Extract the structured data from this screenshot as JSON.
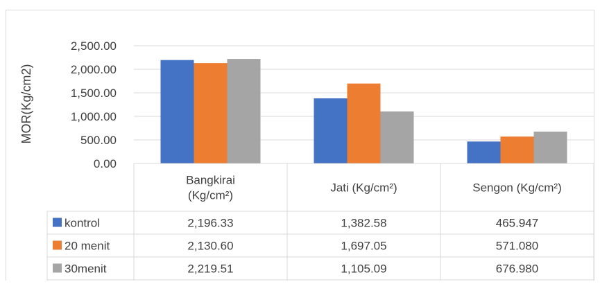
{
  "chart_data": {
    "type": "bar",
    "title": "",
    "xlabel": "",
    "ylabel": "MOR(Kg/cm2)",
    "ylim": [
      0,
      2500
    ],
    "yticks": [
      "0.00",
      "500.00",
      "1,000.00",
      "1,500.00",
      "2,000.00",
      "2,500.00"
    ],
    "categories": [
      "Bangkirai (Kg/cm²)",
      "Jati (Kg/cm²)",
      "Sengon (Kg/cm²)"
    ],
    "category_lines": [
      [
        "Bangkirai",
        "(Kg/cm²)"
      ],
      [
        "Jati (Kg/cm²)"
      ],
      [
        "Sengon (Kg/cm²)"
      ]
    ],
    "series": [
      {
        "name": "kontrol",
        "color": "#4472C4",
        "values": [
          2196.33,
          1382.58,
          465.947
        ],
        "labels": [
          "2,196.33",
          "1,382.58",
          "465.947"
        ]
      },
      {
        "name": "20 menit",
        "color": "#ED7D31",
        "values": [
          2130.6,
          1697.05,
          571.08
        ],
        "labels": [
          "2,130.60",
          "1,697.05",
          "571.080"
        ]
      },
      {
        "name": "30menit",
        "color": "#A5A5A5",
        "values": [
          2219.51,
          1105.09,
          676.98
        ],
        "labels": [
          "2,219.51",
          "1,105.09",
          "676.980"
        ]
      }
    ],
    "grid": true,
    "legend": "data-table"
  }
}
